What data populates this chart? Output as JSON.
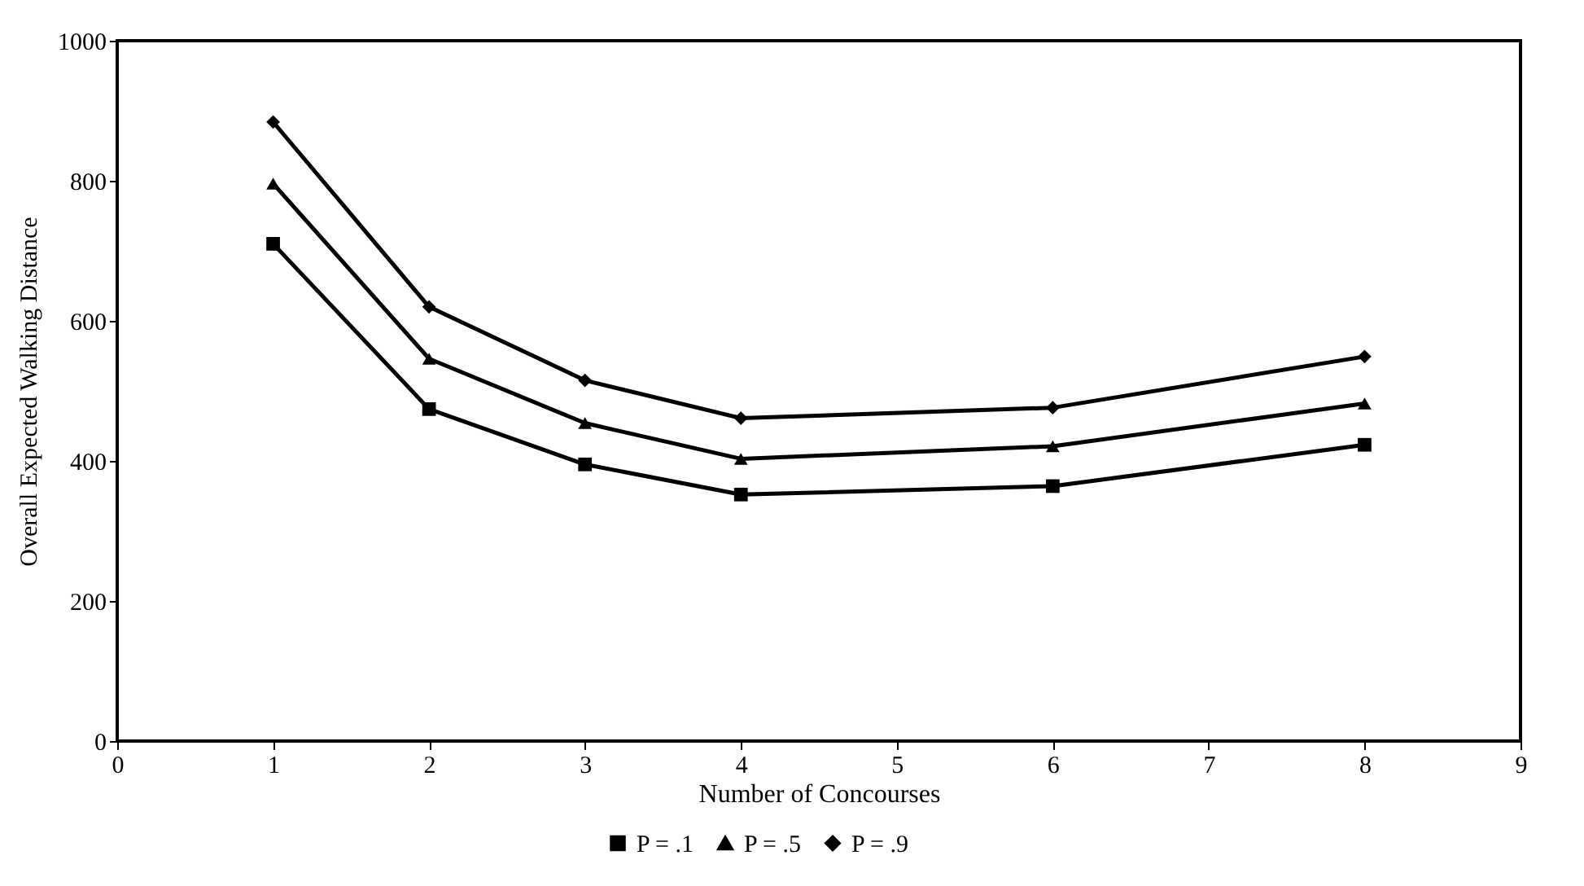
{
  "chart_data": {
    "type": "line",
    "xlabel": "Number of Concourses",
    "ylabel": "Overall Expected Walking Distance",
    "x": [
      1,
      2,
      3,
      4,
      6,
      8
    ],
    "series": [
      {
        "name": "P = .1",
        "color": "#000000",
        "marker": "square",
        "values": [
          710,
          474,
          395,
          352,
          364,
          423
        ]
      },
      {
        "name": "P = .5",
        "color": "#000000",
        "marker": "triangle",
        "values": [
          796,
          546,
          454,
          403,
          421,
          482
        ]
      },
      {
        "name": "P = .9",
        "color": "#000000",
        "marker": "diamond",
        "values": [
          884,
          620,
          515,
          461,
          476,
          549
        ]
      }
    ],
    "xlim": [
      0,
      9
    ],
    "xticks": [
      0,
      1,
      2,
      3,
      4,
      5,
      6,
      7,
      8,
      9
    ],
    "ylim": [
      0,
      1000
    ],
    "yticks": [
      0,
      200,
      400,
      600,
      800,
      1000
    ],
    "legend": "bottom",
    "grid": false,
    "line_style": "solid"
  }
}
